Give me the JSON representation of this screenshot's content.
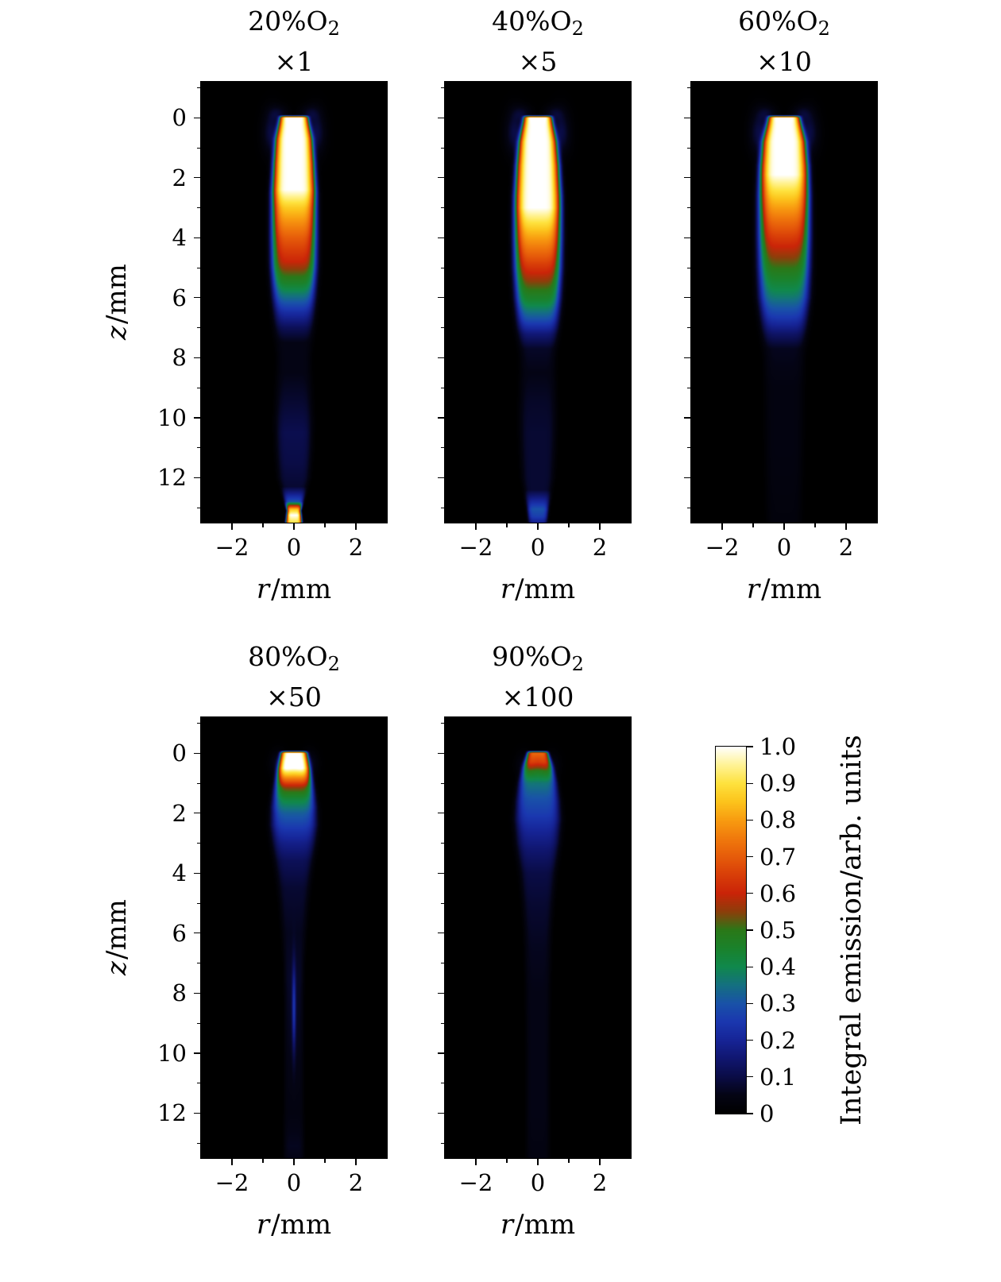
{
  "figure": {
    "background": "#ffffff",
    "text_color": "#000000"
  },
  "chart_data": {
    "type": "heatmap",
    "description": "Integral flame emission maps for five O2 fractions, 2D r-z planes, shared jet colormap",
    "xlabel": {
      "var": "r",
      "rest": "/mm"
    },
    "ylabel": {
      "var": "z",
      "rest": "/mm"
    },
    "x_range": [
      -3,
      3
    ],
    "z_range": [
      -1.2,
      13.5
    ],
    "x_ticks": {
      "values": [
        -2,
        0,
        2
      ],
      "labels": [
        "−2",
        "0",
        "2"
      ],
      "minor": [
        -1,
        1
      ]
    },
    "y_ticks": {
      "values": [
        0,
        2,
        4,
        6,
        8,
        10,
        12
      ],
      "labels": [
        "0",
        "2",
        "4",
        "6",
        "8",
        "10",
        "12"
      ],
      "minor": [
        -1,
        1,
        3,
        5,
        7,
        9,
        11,
        13
      ]
    },
    "colorbar": {
      "label": "Integral emission/arb. units",
      "range": [
        0,
        1
      ],
      "tick_values": [
        1.0,
        0.9,
        0.8,
        0.7,
        0.6,
        0.5,
        0.4,
        0.3,
        0.2,
        0.1,
        0
      ],
      "tick_labels": [
        "1.0",
        "0.9",
        "0.8",
        "0.7",
        "0.6",
        "0.5",
        "0.4",
        "0.3",
        "0.2",
        "0.1",
        "0"
      ]
    },
    "colormap": [
      [
        0.0,
        [
          0,
          0,
          0
        ]
      ],
      [
        0.05,
        [
          4,
          4,
          20
        ]
      ],
      [
        0.1,
        [
          10,
          12,
          70
        ]
      ],
      [
        0.15,
        [
          16,
          22,
          112
        ]
      ],
      [
        0.2,
        [
          22,
          36,
          150
        ]
      ],
      [
        0.25,
        [
          26,
          55,
          175
        ]
      ],
      [
        0.3,
        [
          25,
          82,
          168
        ]
      ],
      [
        0.35,
        [
          20,
          112,
          128
        ]
      ],
      [
        0.4,
        [
          16,
          136,
          76
        ]
      ],
      [
        0.45,
        [
          26,
          130,
          44
        ]
      ],
      [
        0.5,
        [
          42,
          120,
          24
        ]
      ],
      [
        0.55,
        [
          140,
          62,
          10
        ]
      ],
      [
        0.6,
        [
          202,
          36,
          8
        ]
      ],
      [
        0.65,
        [
          216,
          62,
          8
        ]
      ],
      [
        0.7,
        [
          230,
          92,
          10
        ]
      ],
      [
        0.75,
        [
          240,
          122,
          12
        ]
      ],
      [
        0.8,
        [
          248,
          156,
          16
        ]
      ],
      [
        0.85,
        [
          252,
          196,
          28
        ]
      ],
      [
        0.9,
        [
          254,
          226,
          62
        ]
      ],
      [
        0.95,
        [
          255,
          243,
          150
        ]
      ],
      [
        1.0,
        [
          255,
          255,
          255
        ]
      ]
    ],
    "panels": [
      {
        "title_main": "20%O",
        "title_sub": "2",
        "title_mult": "×1",
        "o2_percent": 20,
        "scale_factor": 1,
        "model": {
          "p": 6,
          "center": [
            [
              -1.2,
              0
            ],
            [
              -0.1,
              0
            ],
            [
              0,
              1
            ],
            [
              2.4,
              1
            ],
            [
              3,
              0.86
            ],
            [
              4,
              0.7
            ],
            [
              4.8,
              0.6
            ],
            [
              5.5,
              0.46
            ],
            [
              6,
              0.34
            ],
            [
              6.5,
              0.22
            ],
            [
              7,
              0.12
            ],
            [
              7.5,
              0.05
            ],
            [
              8.5,
              0.05
            ],
            [
              9.5,
              0.08
            ],
            [
              10.5,
              0.11
            ],
            [
              11.5,
              0.1
            ],
            [
              12.3,
              0.08
            ],
            [
              12.8,
              0.3
            ],
            [
              13.05,
              0.85
            ],
            [
              13.25,
              1
            ],
            [
              13.5,
              0.9
            ]
          ],
          "width": [
            [
              -1.2,
              0.4
            ],
            [
              0,
              0.45
            ],
            [
              0.7,
              0.58
            ],
            [
              1.5,
              0.65
            ],
            [
              2.5,
              0.7
            ],
            [
              4,
              0.72
            ],
            [
              5,
              0.72
            ],
            [
              6,
              0.68
            ],
            [
              7,
              0.62
            ],
            [
              8,
              0.52
            ],
            [
              9,
              0.55
            ],
            [
              10,
              0.58
            ],
            [
              11,
              0.56
            ],
            [
              12,
              0.5
            ],
            [
              12.8,
              0.3
            ],
            [
              13.1,
              0.22
            ],
            [
              13.5,
              0.26
            ]
          ],
          "blobs": [
            {
              "z0": -0.15,
              "r0": 0.5,
              "sz": 0.25,
              "sr": 0.3,
              "amp": 0.06
            },
            {
              "z0": 0.5,
              "r0": 0.72,
              "sz": 0.7,
              "sr": 0.28,
              "amp": 0.1
            }
          ]
        }
      },
      {
        "title_main": "40%O",
        "title_sub": "2",
        "title_mult": "×5",
        "o2_percent": 40,
        "scale_factor": 5,
        "model": {
          "p": 6,
          "center": [
            [
              -1.2,
              0
            ],
            [
              -0.1,
              0
            ],
            [
              0,
              1
            ],
            [
              3,
              1
            ],
            [
              3.8,
              0.84
            ],
            [
              4.6,
              0.7
            ],
            [
              5.4,
              0.56
            ],
            [
              6.1,
              0.44
            ],
            [
              6.7,
              0.3
            ],
            [
              7.2,
              0.16
            ],
            [
              7.7,
              0.07
            ],
            [
              8.5,
              0.05
            ],
            [
              9.5,
              0.07
            ],
            [
              10.5,
              0.08
            ],
            [
              11.5,
              0.08
            ],
            [
              12.4,
              0.08
            ],
            [
              13.05,
              0.3
            ],
            [
              13.3,
              0.26
            ],
            [
              13.5,
              0.18
            ]
          ],
          "width": [
            [
              -1.2,
              0.4
            ],
            [
              0,
              0.45
            ],
            [
              0.8,
              0.6
            ],
            [
              1.6,
              0.68
            ],
            [
              2.6,
              0.73
            ],
            [
              4,
              0.75
            ],
            [
              5,
              0.75
            ],
            [
              6,
              0.72
            ],
            [
              7,
              0.66
            ],
            [
              8,
              0.55
            ],
            [
              9,
              0.56
            ],
            [
              10,
              0.58
            ],
            [
              11,
              0.55
            ],
            [
              12,
              0.5
            ],
            [
              13,
              0.34
            ],
            [
              13.5,
              0.3
            ]
          ],
          "blobs": [
            {
              "z0": -0.15,
              "r0": 0.5,
              "sz": 0.25,
              "sr": 0.3,
              "amp": 0.06
            },
            {
              "z0": 0.5,
              "r0": 0.75,
              "sz": 0.7,
              "sr": 0.28,
              "amp": 0.1
            }
          ]
        }
      },
      {
        "title_main": "60%O",
        "title_sub": "2",
        "title_mult": "×10",
        "o2_percent": 60,
        "scale_factor": 10,
        "model": {
          "p": 6,
          "center": [
            [
              -1.2,
              0
            ],
            [
              -0.1,
              0
            ],
            [
              0,
              1
            ],
            [
              1.9,
              1
            ],
            [
              2.7,
              0.85
            ],
            [
              3.5,
              0.72
            ],
            [
              4.3,
              0.6
            ],
            [
              5.1,
              0.49
            ],
            [
              5.9,
              0.38
            ],
            [
              6.6,
              0.26
            ],
            [
              7.2,
              0.14
            ],
            [
              7.7,
              0.06
            ],
            [
              9,
              0.04
            ],
            [
              11,
              0.04
            ],
            [
              13.5,
              0.03
            ]
          ],
          "width": [
            [
              -1.2,
              0.45
            ],
            [
              0,
              0.5
            ],
            [
              0.8,
              0.68
            ],
            [
              1.6,
              0.76
            ],
            [
              2.6,
              0.8
            ],
            [
              4,
              0.82
            ],
            [
              5,
              0.82
            ],
            [
              6,
              0.8
            ],
            [
              7,
              0.72
            ],
            [
              8,
              0.62
            ],
            [
              10,
              0.6
            ],
            [
              13.5,
              0.55
            ]
          ],
          "blobs": [
            {
              "z0": -0.15,
              "r0": 0.55,
              "sz": 0.25,
              "sr": 0.3,
              "amp": 0.06
            },
            {
              "z0": 0.5,
              "r0": 0.8,
              "sz": 0.7,
              "sr": 0.3,
              "amp": 0.1
            }
          ]
        }
      },
      {
        "title_main": "80%O",
        "title_sub": "2",
        "title_mult": "×50",
        "o2_percent": 80,
        "scale_factor": 50,
        "model": {
          "p": 6,
          "center": [
            [
              -1.2,
              0
            ],
            [
              -0.1,
              0
            ],
            [
              0,
              1
            ],
            [
              0.5,
              1
            ],
            [
              0.85,
              0.75
            ],
            [
              1.15,
              0.55
            ],
            [
              1.55,
              0.42
            ],
            [
              2,
              0.32
            ],
            [
              2.5,
              0.25
            ],
            [
              3,
              0.18
            ],
            [
              3.6,
              0.12
            ],
            [
              4.5,
              0.08
            ],
            [
              6,
              0.06
            ],
            [
              7.5,
              0.07
            ],
            [
              9,
              0.06
            ],
            [
              10.3,
              0.05
            ],
            [
              12,
              0.04
            ],
            [
              13.1,
              0.06
            ],
            [
              13.5,
              0.05
            ]
          ],
          "width": [
            [
              -1.2,
              0.35
            ],
            [
              0,
              0.42
            ],
            [
              0.6,
              0.52
            ],
            [
              1.2,
              0.62
            ],
            [
              1.8,
              0.7
            ],
            [
              2.4,
              0.73
            ],
            [
              3,
              0.68
            ],
            [
              4,
              0.55
            ],
            [
              5,
              0.45
            ],
            [
              6,
              0.38
            ],
            [
              7,
              0.32
            ],
            [
              8,
              0.3
            ],
            [
              10,
              0.3
            ],
            [
              13.5,
              0.32
            ]
          ],
          "blobs": [
            {
              "z0": 0.35,
              "r0": 0.5,
              "sz": 0.4,
              "sr": 0.25,
              "amp": 0.07
            },
            {
              "z0": 8.5,
              "r0": 0,
              "sz": 1.4,
              "sr": 0.06,
              "amp": 0.18
            }
          ]
        }
      },
      {
        "title_main": "90%O",
        "title_sub": "2",
        "title_mult": "×100",
        "o2_percent": 90,
        "scale_factor": 100,
        "model": {
          "p": 6,
          "center": [
            [
              -1.2,
              0
            ],
            [
              -0.1,
              0
            ],
            [
              0,
              0.72
            ],
            [
              0.3,
              0.64
            ],
            [
              0.6,
              0.48
            ],
            [
              1,
              0.36
            ],
            [
              1.5,
              0.3
            ],
            [
              2,
              0.26
            ],
            [
              2.6,
              0.2
            ],
            [
              3.2,
              0.15
            ],
            [
              4,
              0.1
            ],
            [
              5,
              0.08
            ],
            [
              6.5,
              0.06
            ],
            [
              8,
              0.05
            ],
            [
              10,
              0.05
            ],
            [
              12,
              0.05
            ],
            [
              13.5,
              0.04
            ]
          ],
          "width": [
            [
              -1.2,
              0.3
            ],
            [
              0,
              0.34
            ],
            [
              0.5,
              0.48
            ],
            [
              1,
              0.6
            ],
            [
              1.6,
              0.68
            ],
            [
              2.2,
              0.72
            ],
            [
              3,
              0.68
            ],
            [
              4,
              0.56
            ],
            [
              5,
              0.48
            ],
            [
              6,
              0.42
            ],
            [
              8,
              0.38
            ],
            [
              10,
              0.36
            ],
            [
              13.5,
              0.36
            ]
          ],
          "blobs": [
            {
              "z0": 0.4,
              "r0": 0.45,
              "sz": 0.4,
              "sr": 0.25,
              "amp": 0.05
            }
          ]
        }
      }
    ]
  }
}
